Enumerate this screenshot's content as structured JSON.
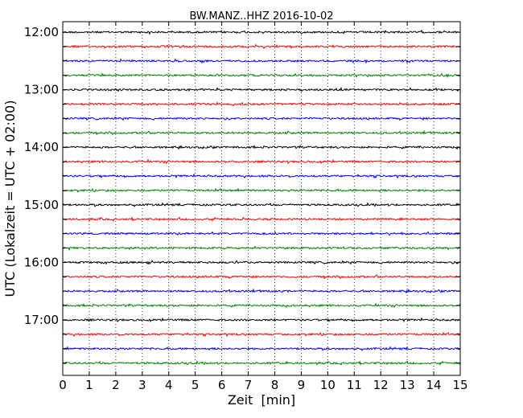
{
  "chart_data": {
    "type": "line",
    "title": "BW.MANZ..HHZ 2016-10-02",
    "xlabel": "Zeit  [min]",
    "ylabel": "UTC (Lokalzeit = UTC + 02:00)",
    "xlim": [
      0,
      15
    ],
    "x_ticks": [
      "0",
      "1",
      "2",
      "3",
      "4",
      "5",
      "6",
      "7",
      "8",
      "9",
      "10",
      "11",
      "12",
      "13",
      "14",
      "15"
    ],
    "y_tick_labels": [
      "12:00",
      "13:00",
      "14:00",
      "15:00",
      "16:00",
      "17:00"
    ],
    "trace_colors": [
      "#000000",
      "#ff0000",
      "#0000ff",
      "#008000"
    ],
    "trace_start_times": [
      "12:00",
      "12:15",
      "12:30",
      "12:45",
      "13:00",
      "13:15",
      "13:30",
      "13:45",
      "14:00",
      "14:15",
      "14:30",
      "14:45",
      "15:00",
      "15:15",
      "15:30",
      "15:45",
      "16:00",
      "16:15",
      "16:30",
      "16:45",
      "17:00",
      "17:15",
      "17:30",
      "17:45"
    ],
    "grid": "vertical-dotted",
    "legend": "none"
  }
}
